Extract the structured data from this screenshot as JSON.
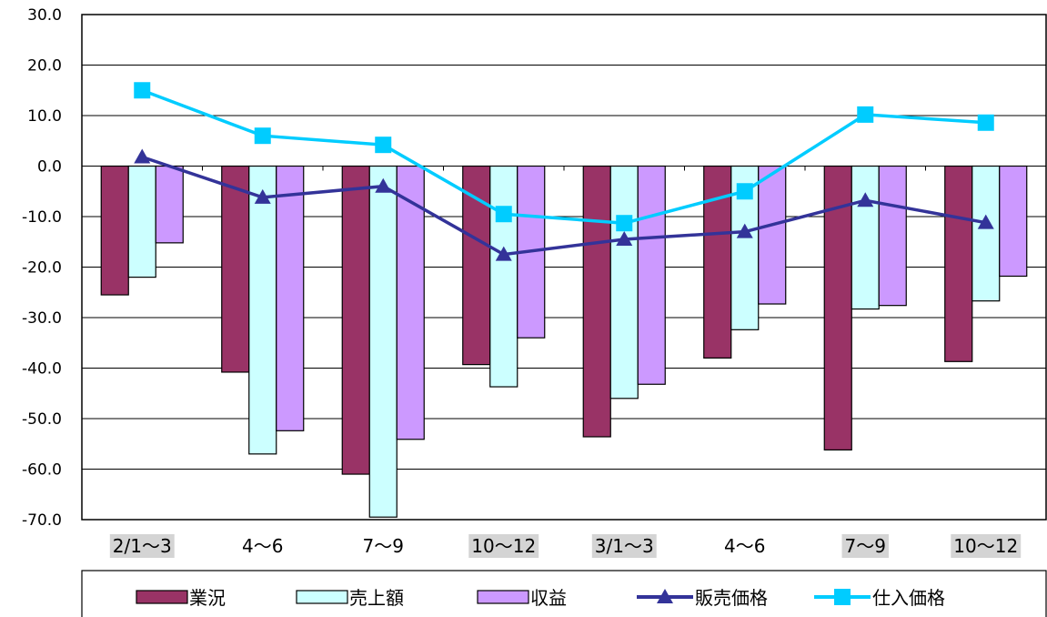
{
  "chart_data": {
    "type": "bar",
    "categories": [
      "2/1～3",
      "4～6",
      "7～9",
      "10～12",
      "3/1～3",
      "4～6",
      "7～9",
      "10～12"
    ],
    "highlighted_categories": [
      0,
      3,
      4,
      6,
      7
    ],
    "ylim": [
      -70,
      30
    ],
    "yticks": [
      30,
      20,
      10,
      0,
      -10,
      -20,
      -30,
      -40,
      -50,
      -60,
      -70
    ],
    "ytick_labels": [
      "30.0",
      "20.0",
      "10.0",
      "0.0",
      "-10.0",
      "-20.0",
      "-30.0",
      "-40.0",
      "-50.0",
      "-60.0",
      "-70.0"
    ],
    "grid": true,
    "legend_position": "bottom",
    "series": [
      {
        "name": "業況",
        "kind": "bar",
        "color": "#993366",
        "values": [
          -25.5,
          -40.8,
          -61.0,
          -39.3,
          -53.6,
          -38.0,
          -56.2,
          -38.7
        ]
      },
      {
        "name": "売上額",
        "kind": "bar",
        "color": "#CCFFFF",
        "values": [
          -22.0,
          -57.0,
          -69.5,
          -43.7,
          -46.0,
          -32.4,
          -28.3,
          -26.7
        ]
      },
      {
        "name": "収益",
        "kind": "bar",
        "color": "#CC99FF",
        "values": [
          -15.2,
          -52.4,
          -54.1,
          -34.0,
          -43.2,
          -27.3,
          -27.6,
          -21.8
        ]
      },
      {
        "name": "販売価格",
        "kind": "line",
        "marker": "triangle",
        "color": "#333399",
        "values": [
          1.8,
          -6.2,
          -4.0,
          -17.5,
          -14.5,
          -13.0,
          -6.8,
          -11.2
        ]
      },
      {
        "name": "仕入価格",
        "kind": "line",
        "marker": "square",
        "color": "#00CCFF",
        "values": [
          15.0,
          6.0,
          4.2,
          -9.5,
          -11.3,
          -5.0,
          10.2,
          8.6
        ]
      }
    ]
  }
}
